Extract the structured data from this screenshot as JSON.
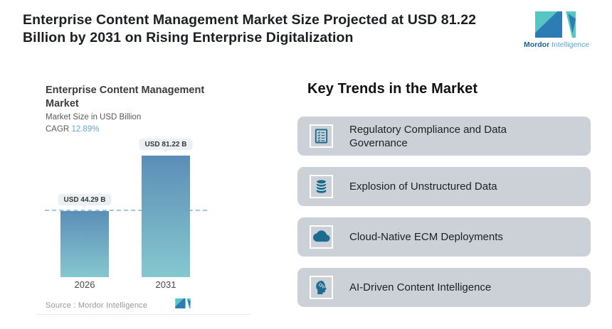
{
  "header": {
    "title": "Enterprise Content Management Market Size Projected at USD 81.22 Billion by 2031 on Rising Enterprise Digitalization",
    "title_line1": "Enterprise Content Management Market Size Projected at USD 81.22",
    "title_line2": "Billion by 2031 on Rising Enterprise Digitalization"
  },
  "brand": {
    "name_bold": "Mordor",
    "name_light": "Intelligence"
  },
  "chart_data": {
    "type": "bar",
    "title": "Enterprise Content Management Market",
    "title_line1": "Enterprise Content Management",
    "title_line2": "Market",
    "subtitle": "Market Size in USD Billion",
    "cagr_label": "CAGR",
    "cagr_value": "12.89%",
    "categories": [
      "2026",
      "2031"
    ],
    "values": [
      44.29,
      81.22
    ],
    "value_labels": [
      "USD 44.29 B",
      "USD 81.22 B"
    ],
    "ylabel": "Market Size in USD Billion",
    "ylim": [
      0,
      81.22
    ],
    "reference_line": 44.29,
    "grid": false,
    "legend": false,
    "source": "Source :  Mordor Intelligence",
    "bar_gradient_top": "#5b8eb7",
    "bar_gradient_bottom": "#85c8cf"
  },
  "trends": {
    "heading": "Key Trends in the Market",
    "items": [
      {
        "icon": "checklist-icon",
        "label": "Regulatory Compliance and Data Governance"
      },
      {
        "icon": "database-icon",
        "label": "Explosion of Unstructured Data"
      },
      {
        "icon": "cloud-icon",
        "label": "Cloud-Native ECM Deployments"
      },
      {
        "icon": "ai-head-icon",
        "label": "AI-Driven Content Intelligence"
      }
    ]
  },
  "colors": {
    "accent_teal": "#56c6c4",
    "accent_blue": "#2d7cb3",
    "icon_color": "#1d6b8f",
    "card_background": "#ccd1d8",
    "dashed_line": "#a3c6d8",
    "pill_background": "#eaf0f4",
    "cagr_value_color": "#62a9d1"
  }
}
